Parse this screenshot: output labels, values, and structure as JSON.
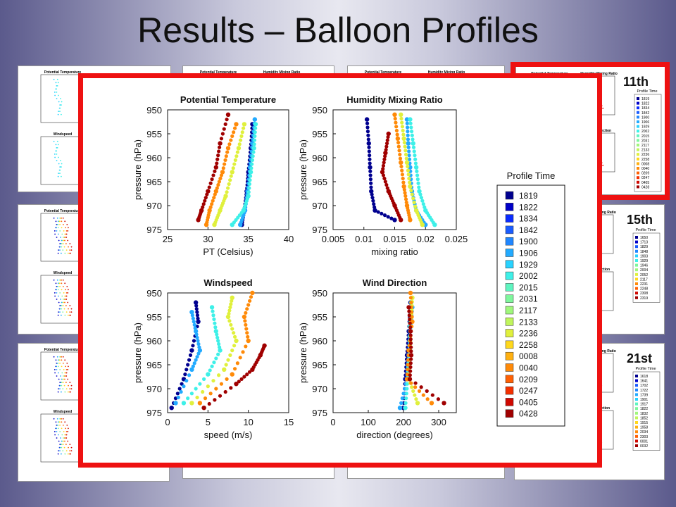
{
  "slide": {
    "title": "Results – Balloon Profiles"
  },
  "day_labels": [
    "11th",
    "15th",
    "21st"
  ],
  "thumbnails": {
    "titles": [
      "Potential Temperature",
      "Humidity Mixing Ratio",
      "Windspeed",
      "Wind Direction"
    ],
    "legend_title": "Profile Time",
    "legend_15th": [
      "1650",
      "1713",
      "1829",
      "1848",
      "1903",
      "1929",
      "1946",
      "2004",
      "2052",
      "2117",
      "2231",
      "2248",
      "2308",
      "2319"
    ],
    "legend_21st": [
      "1618",
      "1641",
      "1702",
      "1722",
      "1739",
      "1901",
      "1917",
      "1822",
      "1832",
      "1852",
      "1915",
      "1958",
      "2034",
      "2303",
      "0001",
      "0032"
    ],
    "legend_11th": [
      "1819",
      "1822",
      "1834",
      "1842",
      "1900",
      "1906",
      "1929",
      "2002",
      "2015",
      "2031",
      "2117",
      "2133",
      "2236",
      "2258",
      "0008",
      "0040",
      "0209",
      "0247",
      "0405",
      "0428"
    ]
  },
  "legend": {
    "title": "Profile Time",
    "entries": [
      "1819",
      "1822",
      "1834",
      "1842",
      "1900",
      "1906",
      "1929",
      "2002",
      "2015",
      "2031",
      "2117",
      "2133",
      "2236",
      "2258",
      "0008",
      "0040",
      "0209",
      "0247",
      "0405",
      "0428"
    ],
    "colors": [
      "#00008f",
      "#0000c8",
      "#0a2cff",
      "#1a5cff",
      "#1f86ff",
      "#22aaff",
      "#28d2ff",
      "#3ef0e8",
      "#5ff5c0",
      "#7ff79c",
      "#a0f77c",
      "#c0f55c",
      "#e0f03c",
      "#ffd81c",
      "#ffb010",
      "#ff8a08",
      "#ff6004",
      "#f43000",
      "#d00800",
      "#a00000"
    ]
  },
  "chart_data": [
    {
      "type": "scatter",
      "title": "Potential Temperature",
      "xlabel": "PT (Celsius)",
      "ylabel": "pressure (hPa)",
      "xlim": [
        25,
        40
      ],
      "ylim": [
        950,
        975
      ],
      "y_reversed": true,
      "xticks": [
        25,
        30,
        35,
        40
      ],
      "yticks": [
        950,
        955,
        960,
        965,
        970,
        975
      ],
      "series": [
        {
          "name": "1819",
          "x": [
            35.5,
            35.3,
            35.0,
            34.8,
            34.5,
            34.2
          ],
          "y": [
            953,
            958,
            963,
            967,
            971,
            974
          ]
        },
        {
          "name": "1906",
          "x": [
            35.8,
            35.5,
            35.2,
            34.9,
            34.6,
            34.0
          ],
          "y": [
            952,
            957,
            962,
            967,
            971,
            974
          ]
        },
        {
          "name": "2002",
          "x": [
            35.9,
            35.7,
            35.3,
            35.0,
            34.4,
            33.0
          ],
          "y": [
            953,
            958,
            963,
            968,
            971,
            974
          ]
        },
        {
          "name": "2236",
          "x": [
            34.5,
            33.8,
            33.0,
            32.2,
            31.5,
            30.8
          ],
          "y": [
            953,
            958,
            963,
            968,
            971,
            974
          ]
        },
        {
          "name": "0040",
          "x": [
            33.5,
            32.5,
            31.8,
            31.0,
            30.2,
            29.8
          ],
          "y": [
            953,
            958,
            963,
            967,
            971,
            974
          ]
        },
        {
          "name": "0428",
          "x": [
            32.5,
            31.5,
            31.0,
            30.0,
            29.2,
            28.8
          ],
          "y": [
            951,
            957,
            962,
            967,
            971,
            973
          ]
        }
      ]
    },
    {
      "type": "scatter",
      "title": "Humidity Mixing Ratio",
      "xlabel": "mixing ratio",
      "ylabel": "pressure (hPa)",
      "xlim": [
        0.005,
        0.025
      ],
      "ylim": [
        950,
        975
      ],
      "y_reversed": true,
      "xticks": [
        0.005,
        0.01,
        0.015,
        0.02,
        0.025
      ],
      "xticklabels": [
        "0.005",
        "0.01",
        "0.015",
        "0.02",
        "0.025"
      ],
      "yticks": [
        950,
        955,
        960,
        965,
        970,
        975
      ],
      "series": [
        {
          "name": "1819",
          "x": [
            0.0105,
            0.0108,
            0.011,
            0.0112,
            0.0118,
            0.015
          ],
          "y": [
            952,
            957,
            962,
            967,
            971,
            973
          ]
        },
        {
          "name": "1906",
          "x": [
            0.017,
            0.0172,
            0.0175,
            0.0178,
            0.0185,
            0.02
          ],
          "y": [
            952,
            957,
            962,
            967,
            971,
            974
          ]
        },
        {
          "name": "2002",
          "x": [
            0.0175,
            0.018,
            0.0185,
            0.019,
            0.02,
            0.0215
          ],
          "y": [
            952,
            957,
            962,
            967,
            971,
            974
          ]
        },
        {
          "name": "2236",
          "x": [
            0.016,
            0.0165,
            0.017,
            0.0175,
            0.0185,
            0.0195
          ],
          "y": [
            951,
            956,
            961,
            966,
            971,
            974
          ]
        },
        {
          "name": "0040",
          "x": [
            0.015,
            0.0155,
            0.016,
            0.0165,
            0.017,
            0.0175
          ],
          "y": [
            951,
            956,
            961,
            966,
            970,
            973
          ]
        },
        {
          "name": "0428",
          "x": [
            0.014,
            0.0135,
            0.013,
            0.014,
            0.015,
            0.016
          ],
          "y": [
            955,
            959,
            963,
            967,
            970,
            973
          ]
        }
      ]
    },
    {
      "type": "scatter",
      "title": "Windspeed",
      "xlabel": "speed (m/s)",
      "ylabel": "pressure (hPa)",
      "xlim": [
        0,
        15
      ],
      "ylim": [
        950,
        975
      ],
      "y_reversed": true,
      "xticks": [
        0,
        5,
        10,
        15
      ],
      "yticks": [
        950,
        955,
        960,
        965,
        970,
        975
      ],
      "series": [
        {
          "name": "1819",
          "x": [
            3.5,
            3.8,
            3.0,
            2.0,
            0.5
          ],
          "y": [
            952,
            956,
            962,
            968,
            974
          ]
        },
        {
          "name": "1906",
          "x": [
            3.0,
            3.5,
            4.0,
            3.0,
            1.0
          ],
          "y": [
            954,
            958,
            962,
            966,
            973
          ]
        },
        {
          "name": "2002",
          "x": [
            5.5,
            6.0,
            6.5,
            5.0,
            2.0
          ],
          "y": [
            953,
            958,
            962,
            967,
            973
          ]
        },
        {
          "name": "2236",
          "x": [
            8.0,
            7.5,
            8.5,
            7.0,
            3.0
          ],
          "y": [
            951,
            955,
            960,
            966,
            973
          ]
        },
        {
          "name": "0040",
          "x": [
            10.5,
            9.5,
            10.0,
            8.0,
            4.0
          ],
          "y": [
            950,
            955,
            960,
            967,
            973
          ]
        },
        {
          "name": "0428",
          "x": [
            12.0,
            11.5,
            10.5,
            8.5,
            4.5
          ],
          "y": [
            961,
            963,
            966,
            969,
            974
          ]
        }
      ]
    },
    {
      "type": "scatter",
      "title": "Wind Direction",
      "xlabel": "direction (degrees)",
      "ylabel": "pressure (hPa)",
      "xlim": [
        0,
        350
      ],
      "ylim": [
        950,
        975
      ],
      "y_reversed": true,
      "xticks": [
        0,
        100,
        200,
        300
      ],
      "yticks": [
        950,
        955,
        960,
        965,
        970,
        975
      ],
      "series": [
        {
          "name": "1819",
          "x": [
            220,
            215,
            210,
            205,
            200
          ],
          "y": [
            952,
            958,
            963,
            968,
            974
          ]
        },
        {
          "name": "1906",
          "x": [
            225,
            220,
            215,
            210,
            190
          ],
          "y": [
            953,
            958,
            963,
            968,
            974
          ]
        },
        {
          "name": "2002",
          "x": [
            222,
            218,
            215,
            212,
            205
          ],
          "y": [
            952,
            957,
            963,
            968,
            974
          ]
        },
        {
          "name": "2236",
          "x": [
            225,
            222,
            218,
            215,
            240
          ],
          "y": [
            951,
            956,
            962,
            968,
            973
          ]
        },
        {
          "name": "0040",
          "x": [
            220,
            225,
            215,
            210,
            280
          ],
          "y": [
            950,
            956,
            962,
            968,
            973
          ]
        },
        {
          "name": "0428",
          "x": [
            215,
            220,
            222,
            218,
            315
          ],
          "y": [
            953,
            958,
            963,
            968,
            973
          ]
        }
      ]
    }
  ]
}
